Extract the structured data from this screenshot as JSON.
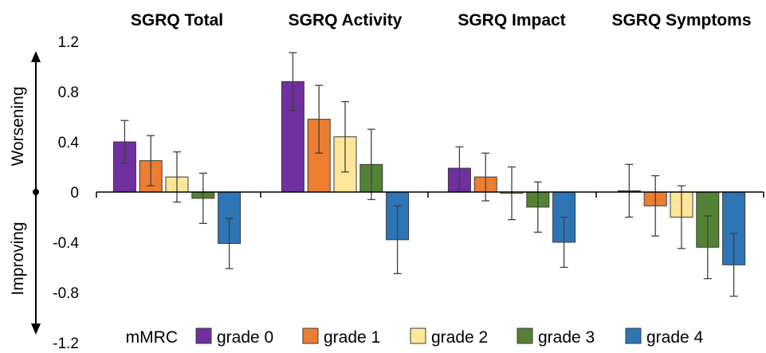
{
  "chart_data": {
    "type": "bar",
    "categories": [
      "SGRQ Total",
      "SGRQ Activity",
      "SGRQ Impact",
      "SGRQ Symptoms"
    ],
    "series": [
      {
        "name": "grade 0",
        "color": "#7030A0",
        "values": [
          0.4,
          0.88,
          0.19,
          0.01
        ],
        "error": [
          0.17,
          0.23,
          0.17,
          0.21
        ]
      },
      {
        "name": "grade 1",
        "color": "#ED7D31",
        "values": [
          0.25,
          0.58,
          0.12,
          -0.11
        ],
        "error": [
          0.2,
          0.27,
          0.19,
          0.24
        ]
      },
      {
        "name": "grade 2",
        "color": "#FFE699",
        "values": [
          0.12,
          0.44,
          -0.01,
          -0.2
        ],
        "error": [
          0.2,
          0.28,
          0.21,
          0.25
        ]
      },
      {
        "name": "grade 3",
        "color": "#548235",
        "values": [
          -0.05,
          0.22,
          -0.12,
          -0.44
        ],
        "error": [
          0.2,
          0.28,
          0.2,
          0.25
        ]
      },
      {
        "name": "grade 4",
        "color": "#2E75B6",
        "values": [
          -0.41,
          -0.38,
          -0.4,
          -0.58
        ],
        "error": [
          0.2,
          0.27,
          0.2,
          0.25
        ]
      }
    ],
    "ylim": [
      -1.2,
      1.2
    ],
    "yticks": [
      "1.2",
      "0.8",
      "0.4",
      "0",
      "-0.4",
      "-0.8",
      "-1.2"
    ],
    "ytick_values": [
      1.2,
      0.8,
      0.4,
      0,
      -0.4,
      -0.8,
      -1.2
    ],
    "up_label": "Worsening",
    "down_label": "Improving",
    "legend_title": "mMRC",
    "legend_position": "bottom",
    "grid": false
  }
}
